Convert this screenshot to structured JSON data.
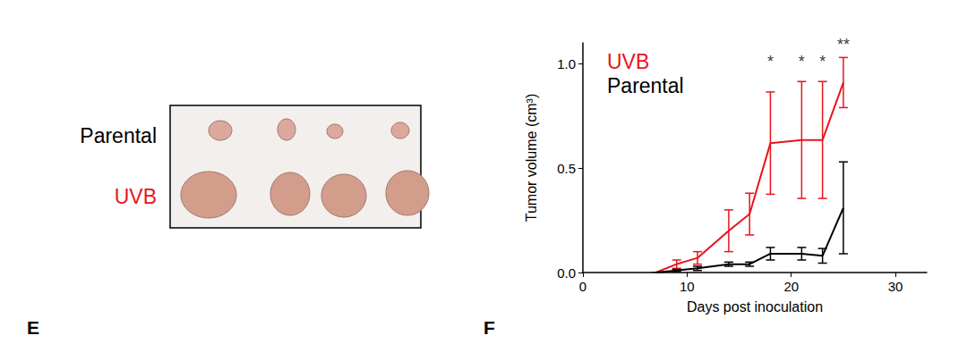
{
  "chart_data": {
    "type": "line",
    "panel_label": "F",
    "x_label": "Days post inoculation",
    "y_label": "Tumor volume (cm³)",
    "x": [
      7,
      9,
      11,
      14,
      16,
      18,
      21,
      23,
      25
    ],
    "series": [
      {
        "name": "UVB",
        "color": "#e8141c",
        "values": [
          0,
          0.04,
          0.07,
          0.2,
          0.28,
          0.62,
          0.635,
          0.635,
          0.91
        ],
        "errors": [
          0,
          0.02,
          0.03,
          0.1,
          0.1,
          0.245,
          0.28,
          0.28,
          0.12
        ]
      },
      {
        "name": "Parental",
        "color": "#000000",
        "values": [
          0,
          0.01,
          0.02,
          0.04,
          0.04,
          0.09,
          0.09,
          0.08,
          0.31
        ],
        "errors": [
          0,
          0.005,
          0.01,
          0.01,
          0.01,
          0.03,
          0.03,
          0.035,
          0.22
        ]
      }
    ],
    "xlim": [
      0,
      33
    ],
    "xticks": [
      0,
      10,
      20,
      30
    ],
    "ylim": [
      0,
      1.1
    ],
    "yticks": [
      {
        "value": 0,
        "label": "0.0"
      },
      {
        "value": 0.5,
        "label": "0.5"
      },
      {
        "value": 1,
        "label": "1.0"
      }
    ],
    "grid": false,
    "legend": "upper left",
    "annotations": [
      {
        "x": 18,
        "y": 1.01,
        "text": "*"
      },
      {
        "x": 21,
        "y": 1.01,
        "text": "*"
      },
      {
        "x": 23,
        "y": 1.01,
        "text": "*"
      },
      {
        "x": 25,
        "y": 1.09,
        "text": "**"
      }
    ]
  },
  "photo_panel": {
    "panel_label": "E",
    "row_labels": [
      {
        "text": "Parental",
        "color": "#000000"
      },
      {
        "text": "UVB",
        "color": "#e8141c"
      }
    ]
  }
}
